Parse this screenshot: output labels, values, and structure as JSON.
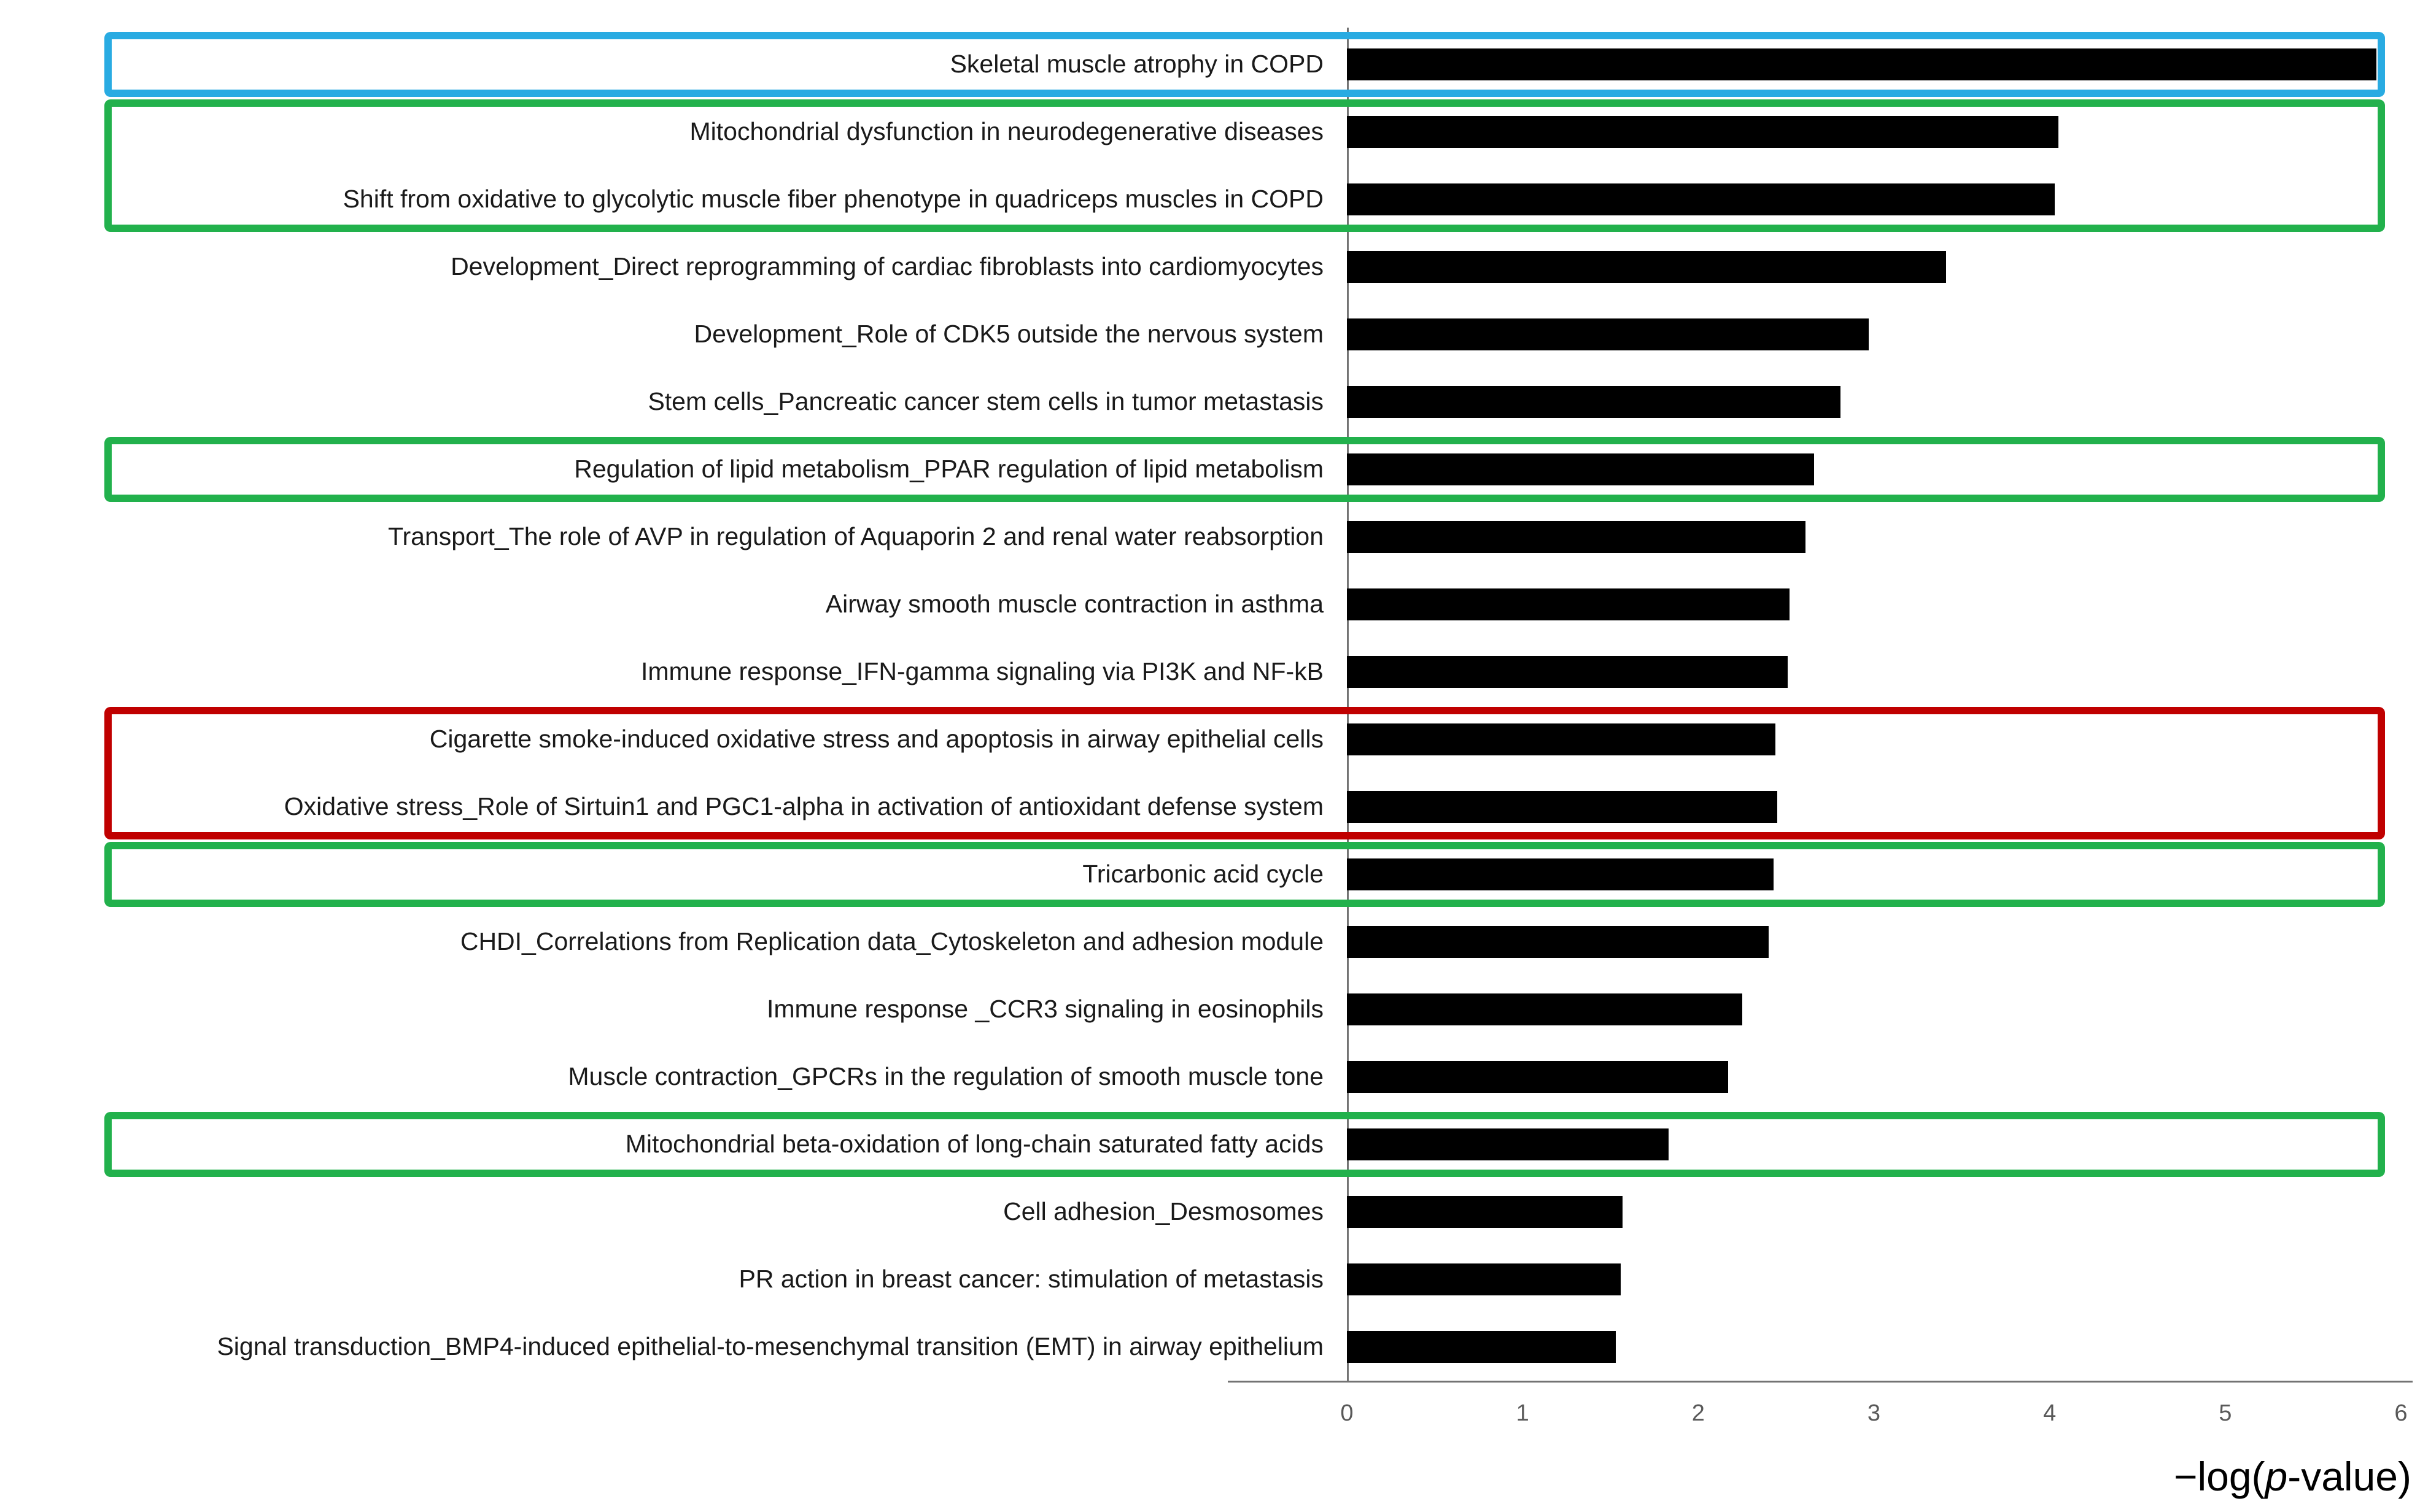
{
  "chart_data": {
    "type": "bar",
    "orientation": "horizontal",
    "title": "",
    "xlabel": {
      "prefix": "−log(",
      "italic": "p",
      "suffix": "-value)"
    },
    "xlim": [
      0,
      6
    ],
    "xticks": [
      0,
      1,
      2,
      3,
      4,
      5,
      6
    ],
    "grid": "off",
    "bar_color": "#000000",
    "axis_color": "#737373",
    "categories": [
      "Skeletal muscle atrophy in COPD",
      "Mitochondrial dysfunction in neurodegenerative diseases",
      "Shift from oxidative to glycolytic muscle fiber phenotype in quadriceps muscles in COPD",
      "Development_Direct reprogramming of cardiac fibroblasts into cardiomyocytes",
      "Development_Role of CDK5 outside the nervous system",
      "Stem cells_Pancreatic cancer stem cells in tumor metastasis",
      "Regulation of lipid metabolism_PPAR regulation of lipid metabolism",
      "Transport_The role of AVP in regulation of Aquaporin 2 and renal water reabsorption",
      "Airway smooth muscle contraction in asthma",
      "Immune response_IFN-gamma signaling via PI3K and NF-kB",
      "Cigarette smoke-induced oxidative stress and apoptosis in airway epithelial cells",
      "Oxidative stress_Role of Sirtuin1 and PGC1-alpha in activation of antioxidant defense system",
      "Tricarbonic acid cycle",
      "CHDI_Correlations from Replication data_Cytoskeleton and adhesion module",
      "Immune response _CCR3 signaling in eosinophils",
      "Muscle contraction_GPCRs in the regulation of smooth muscle tone",
      "Mitochondrial beta-oxidation of long-chain saturated fatty acids",
      "Cell adhesion_Desmosomes",
      "PR action in breast cancer: stimulation of metastasis",
      "Signal transduction_BMP4-induced epithelial-to-mesenchymal transition (EMT) in airway epithelium"
    ],
    "values": [
      5.86,
      4.05,
      4.03,
      3.41,
      2.97,
      2.81,
      2.66,
      2.61,
      2.52,
      2.51,
      2.44,
      2.45,
      2.43,
      2.4,
      2.25,
      2.17,
      1.83,
      1.57,
      1.56,
      1.53
    ],
    "highlights": [
      {
        "start": 0,
        "end": 0,
        "color": "#29abe2",
        "color_name": "blue"
      },
      {
        "start": 1,
        "end": 2,
        "color": "#22b14c",
        "color_name": "green"
      },
      {
        "start": 6,
        "end": 6,
        "color": "#22b14c",
        "color_name": "green"
      },
      {
        "start": 10,
        "end": 11,
        "color": "#c00000",
        "color_name": "red"
      },
      {
        "start": 12,
        "end": 12,
        "color": "#22b14c",
        "color_name": "green"
      },
      {
        "start": 16,
        "end": 16,
        "color": "#22b14c",
        "color_name": "green"
      }
    ]
  }
}
